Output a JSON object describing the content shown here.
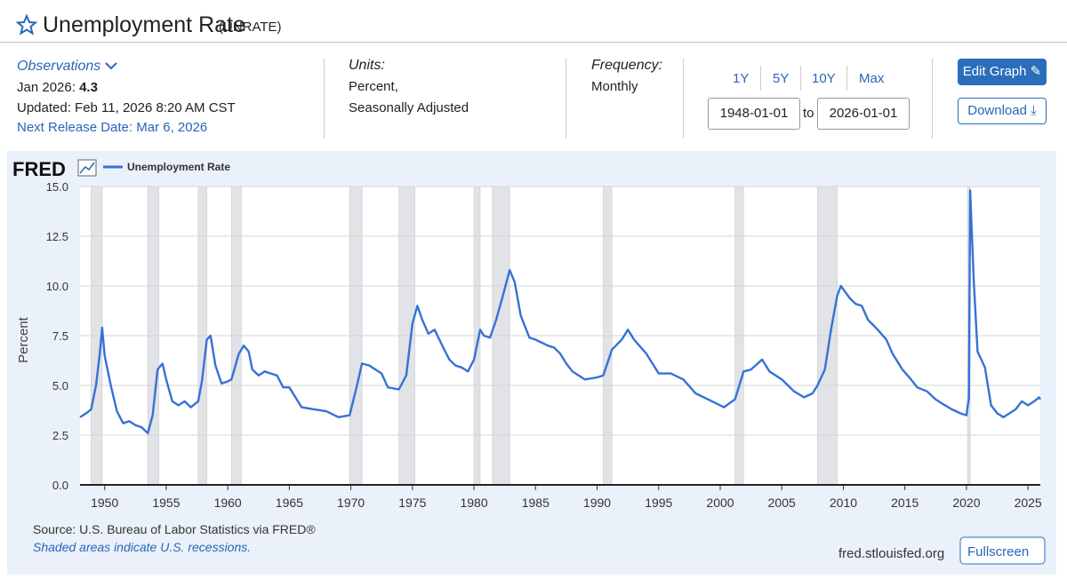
{
  "header": {
    "title": "Unemployment Rate",
    "code": "(UNRATE)"
  },
  "observations": {
    "label": "Observations",
    "latest_label": "Jan 2026:",
    "latest_value": "4.3",
    "updated": "Updated: Feb 11, 2026 8:20 AM CST",
    "next_release": "Next Release Date: Mar 6, 2026"
  },
  "units": {
    "label": "Units:",
    "lines": [
      "Percent,",
      "Seasonally Adjusted"
    ]
  },
  "frequency": {
    "label": "Frequency:",
    "value": "Monthly"
  },
  "ranges": [
    "1Y",
    "5Y",
    "10Y",
    "Max"
  ],
  "dates": {
    "start": "1948-01-01",
    "to": "to",
    "end": "2026-01-01"
  },
  "buttons": {
    "edit": "Edit Graph",
    "download": "Download",
    "fullscreen": "Fullscreen"
  },
  "chart_data": {
    "type": "line",
    "logo": "FRED",
    "ylabel": "Percent",
    "source": "Source: U.S. Bureau of Labor Statistics via FRED®",
    "note": "Shaded areas indicate U.S. recessions.",
    "site": "fred.stlouisfed.org",
    "x": [
      1948.0,
      1948.5,
      1948.9,
      1949.3,
      1949.6,
      1949.8,
      1950.0,
      1950.5,
      1951.0,
      1951.5,
      1952.0,
      1952.5,
      1953.0,
      1953.5,
      1953.9,
      1954.3,
      1954.7,
      1955.0,
      1955.5,
      1956.0,
      1956.5,
      1957.0,
      1957.6,
      1957.9,
      1958.3,
      1958.6,
      1959.0,
      1959.5,
      1960.0,
      1960.3,
      1960.9,
      1961.3,
      1961.7,
      1962.0,
      1962.5,
      1963.0,
      1963.5,
      1964.0,
      1964.5,
      1965.0,
      1965.5,
      1966.0,
      1967.0,
      1968.0,
      1969.0,
      1969.9,
      1970.5,
      1970.9,
      1971.5,
      1972.0,
      1972.5,
      1973.0,
      1973.9,
      1974.5,
      1975.0,
      1975.4,
      1975.8,
      1976.3,
      1976.8,
      1977.5,
      1978.0,
      1978.5,
      1979.0,
      1979.5,
      1980.0,
      1980.5,
      1980.8,
      1981.3,
      1981.8,
      1982.3,
      1982.9,
      1983.3,
      1983.8,
      1984.5,
      1985.0,
      1986.0,
      1986.5,
      1987.0,
      1987.5,
      1988.0,
      1989.0,
      1990.0,
      1990.5,
      1991.2,
      1992.0,
      1992.5,
      1993.0,
      1994.0,
      1995.0,
      1996.0,
      1997.0,
      1998.0,
      1999.0,
      2000.3,
      2001.2,
      2001.9,
      2002.5,
      2003.4,
      2004.0,
      2005.0,
      2006.0,
      2006.8,
      2007.5,
      2007.9,
      2008.5,
      2009.0,
      2009.5,
      2009.8,
      2010.5,
      2011.0,
      2011.5,
      2012.0,
      2012.8,
      2013.5,
      2014.0,
      2014.8,
      2015.5,
      2016.0,
      2016.8,
      2017.5,
      2018.0,
      2018.8,
      2019.5,
      2020.0,
      2020.2,
      2020.3,
      2020.4,
      2020.6,
      2020.9,
      2021.5,
      2022.0,
      2022.5,
      2023.0,
      2023.5,
      2024.0,
      2024.5,
      2025.0,
      2025.5,
      2025.9,
      2026.0
    ],
    "series": [
      {
        "name": "Unemployment Rate",
        "color": "#3572d6",
        "values": [
          3.4,
          3.6,
          3.8,
          5.0,
          6.6,
          7.9,
          6.5,
          5.0,
          3.7,
          3.1,
          3.2,
          3.0,
          2.9,
          2.6,
          3.5,
          5.8,
          6.1,
          5.3,
          4.2,
          4.0,
          4.2,
          3.9,
          4.2,
          5.2,
          7.3,
          7.5,
          6.0,
          5.1,
          5.2,
          5.3,
          6.6,
          7.0,
          6.7,
          5.8,
          5.5,
          5.7,
          5.6,
          5.5,
          4.9,
          4.9,
          4.4,
          3.9,
          3.8,
          3.7,
          3.4,
          3.5,
          5.0,
          6.1,
          6.0,
          5.8,
          5.6,
          4.9,
          4.8,
          5.5,
          8.1,
          9.0,
          8.3,
          7.6,
          7.8,
          6.9,
          6.3,
          6.0,
          5.9,
          5.7,
          6.3,
          7.8,
          7.5,
          7.4,
          8.3,
          9.4,
          10.8,
          10.2,
          8.5,
          7.4,
          7.3,
          7.0,
          6.9,
          6.6,
          6.1,
          5.7,
          5.3,
          5.4,
          5.5,
          6.8,
          7.3,
          7.8,
          7.3,
          6.6,
          5.6,
          5.6,
          5.3,
          4.6,
          4.3,
          3.9,
          4.3,
          5.7,
          5.8,
          6.3,
          5.7,
          5.3,
          4.7,
          4.4,
          4.6,
          5.0,
          5.8,
          7.8,
          9.5,
          10.0,
          9.4,
          9.1,
          9.0,
          8.3,
          7.8,
          7.3,
          6.6,
          5.8,
          5.3,
          4.9,
          4.7,
          4.3,
          4.1,
          3.8,
          3.6,
          3.5,
          4.4,
          14.8,
          13.2,
          10.2,
          6.7,
          5.9,
          4.0,
          3.6,
          3.4,
          3.6,
          3.8,
          4.2,
          4.0,
          4.2,
          4.4,
          4.3
        ]
      }
    ],
    "recessions": [
      [
        1948.9,
        1949.8
      ],
      [
        1953.5,
        1954.4
      ],
      [
        1957.6,
        1958.3
      ],
      [
        1960.3,
        1961.1
      ],
      [
        1969.9,
        1970.9
      ],
      [
        1973.9,
        1975.2
      ],
      [
        1980.0,
        1980.5
      ],
      [
        1981.5,
        1982.9
      ],
      [
        1990.5,
        1991.2
      ],
      [
        2001.2,
        2001.9
      ],
      [
        2007.9,
        2009.5
      ],
      [
        2020.1,
        2020.3
      ]
    ],
    "xlim": [
      1948,
      2026
    ],
    "xticks": [
      1950,
      1955,
      1960,
      1965,
      1970,
      1975,
      1980,
      1985,
      1990,
      1995,
      2000,
      2005,
      2010,
      2015,
      2020,
      2025
    ],
    "ylim": [
      0,
      15
    ],
    "yticks": [
      {
        "value": 0,
        "label": "0.0"
      },
      {
        "value": 2.5,
        "label": "2.5"
      },
      {
        "value": 5,
        "label": "5.0"
      },
      {
        "value": 7.5,
        "label": "7.5"
      },
      {
        "value": 10,
        "label": "10.0"
      },
      {
        "value": 12.5,
        "label": "12.5"
      },
      {
        "value": 15,
        "label": "15.0"
      }
    ],
    "grid": true
  }
}
